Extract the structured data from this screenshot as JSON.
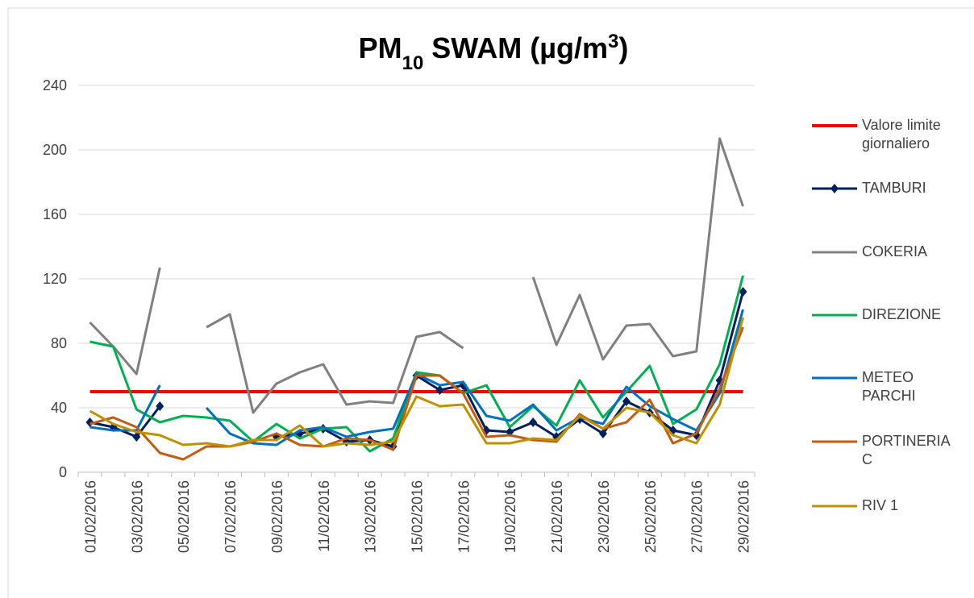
{
  "chart_data": {
    "type": "line",
    "title": [
      {
        "text": "PM"
      },
      {
        "text": "10",
        "style": "sub"
      },
      {
        "text": " SWAM (µg/m"
      },
      {
        "text": "3",
        "style": "super"
      },
      {
        "text": ")"
      }
    ],
    "categories": [
      "01/02/2016",
      null,
      "03/02/2016",
      null,
      "05/02/2016",
      null,
      "07/02/2016",
      null,
      "09/02/2016",
      null,
      "11/02/2016",
      null,
      "13/02/2016",
      null,
      "15/02/2016",
      null,
      "17/02/2016",
      null,
      "19/02/2016",
      null,
      "21/02/2016",
      null,
      "23/02/2016",
      null,
      "25/02/2016",
      null,
      "27/02/2016",
      null,
      "29/02/2016"
    ],
    "series": [
      {
        "name": "Valore limite giornaliero",
        "color": "#ff0000",
        "width": 4,
        "values": [
          50,
          50,
          50,
          50,
          50,
          50,
          50,
          50,
          50,
          50,
          50,
          50,
          50,
          50,
          50,
          50,
          50,
          50,
          50,
          50,
          50,
          50,
          50,
          50,
          50,
          50,
          50,
          50,
          50
        ]
      },
      {
        "name": "TAMBURI",
        "color": "#002060",
        "width": 3,
        "marker": "diamond",
        "values": [
          31,
          28,
          22,
          41,
          null,
          null,
          null,
          null,
          22,
          24,
          27,
          19,
          20,
          16,
          60,
          51,
          54,
          26,
          25,
          31,
          22,
          33,
          24,
          44,
          37,
          26,
          23,
          57,
          112
        ]
      },
      {
        "name": "COKERIA",
        "color": "#808080",
        "width": 3,
        "values": [
          93,
          78,
          61,
          127,
          null,
          90,
          98,
          37,
          55,
          62,
          67,
          42,
          44,
          43,
          84,
          87,
          77,
          null,
          null,
          121,
          79,
          110,
          70,
          91,
          92,
          72,
          75,
          207,
          165
        ]
      },
      {
        "name": "DIREZIONE",
        "color": "#00b050",
        "width": 3,
        "values": [
          81,
          78,
          39,
          31,
          35,
          34,
          32,
          19,
          30,
          21,
          27,
          28,
          13,
          21,
          62,
          60,
          49,
          54,
          28,
          41,
          29,
          57,
          34,
          50,
          66,
          30,
          39,
          67,
          122
        ]
      },
      {
        "name": "METEO PARCHI",
        "color": "#0070c0",
        "width": 3,
        "values": [
          28,
          26,
          26,
          54,
          null,
          40,
          24,
          18,
          17,
          26,
          28,
          22,
          25,
          27,
          61,
          54,
          56,
          35,
          32,
          42,
          26,
          34,
          30,
          53,
          41,
          33,
          26,
          49,
          101
        ]
      },
      {
        "name": "PORTINERIA C",
        "color": "#c55a11",
        "width": 3,
        "values": [
          30,
          34,
          28,
          12,
          8,
          16,
          16,
          19,
          24,
          17,
          16,
          21,
          20,
          14,
          60,
          60,
          49,
          22,
          23,
          20,
          19,
          36,
          27,
          31,
          45,
          18,
          24,
          52,
          90
        ]
      },
      {
        "name": "RIV 1",
        "color": "#bf9000",
        "width": 3,
        "values": [
          38,
          30,
          25,
          23,
          17,
          18,
          16,
          20,
          20,
          29,
          16,
          18,
          17,
          19,
          47,
          41,
          42,
          18,
          18,
          21,
          20,
          35,
          27,
          40,
          37,
          23,
          18,
          42,
          96
        ]
      }
    ],
    "ylim": [
      0,
      240
    ],
    "yticks": [
      0,
      40,
      80,
      120,
      160,
      200,
      240
    ],
    "grid": true,
    "legend": "right"
  }
}
